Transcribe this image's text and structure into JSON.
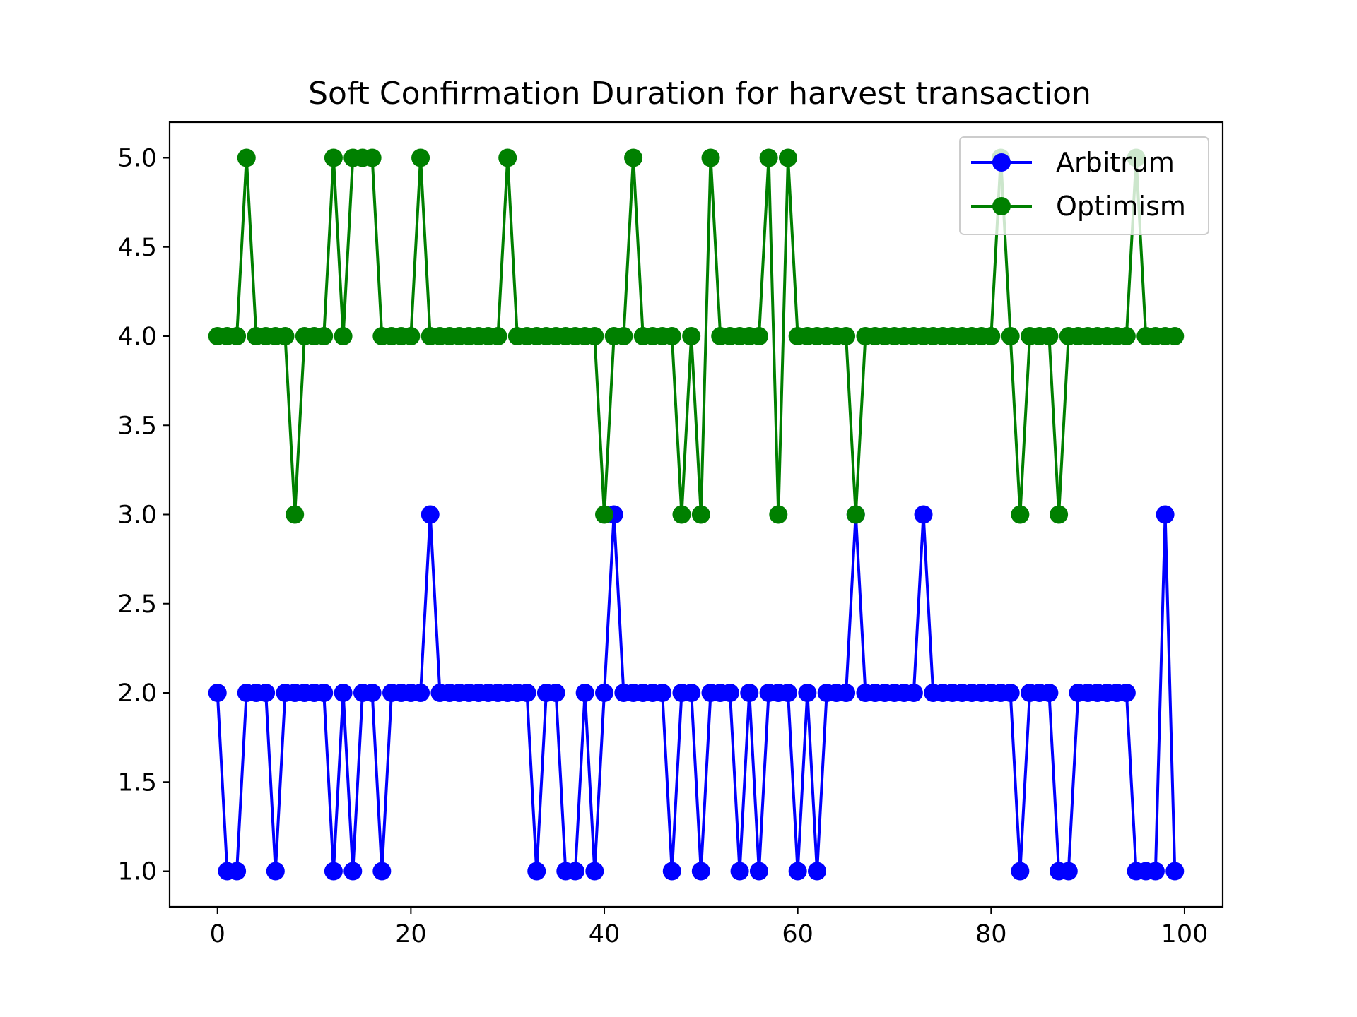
{
  "chart_data": {
    "type": "line",
    "title": "Soft Confirmation Duration for harvest transaction",
    "xlabel": "",
    "ylabel": "",
    "xlim": [
      -4.95,
      103.95
    ],
    "ylim": [
      0.8,
      5.2
    ],
    "xticks": [
      "0",
      "20",
      "40",
      "60",
      "80",
      "100"
    ],
    "yticks": [
      "1.0",
      "1.5",
      "2.0",
      "2.5",
      "3.0",
      "3.5",
      "4.0",
      "4.5",
      "5.0"
    ],
    "grid": false,
    "legend_position": "top-right",
    "x": [
      0,
      1,
      2,
      3,
      4,
      5,
      6,
      7,
      8,
      9,
      10,
      11,
      12,
      13,
      14,
      15,
      16,
      17,
      18,
      19,
      20,
      21,
      22,
      23,
      24,
      25,
      26,
      27,
      28,
      29,
      30,
      31,
      32,
      33,
      34,
      35,
      36,
      37,
      38,
      39,
      40,
      41,
      42,
      43,
      44,
      45,
      46,
      47,
      48,
      49,
      50,
      51,
      52,
      53,
      54,
      55,
      56,
      57,
      58,
      59,
      60,
      61,
      62,
      63,
      64,
      65,
      66,
      67,
      68,
      69,
      70,
      71,
      72,
      73,
      74,
      75,
      76,
      77,
      78,
      79,
      80,
      81,
      82,
      83,
      84,
      85,
      86,
      87,
      88,
      89,
      90,
      91,
      92,
      93,
      94,
      95,
      96,
      97,
      98,
      99
    ],
    "series": [
      {
        "name": "Arbitrum",
        "color": "#0000ff",
        "values": [
          2,
          1,
          1,
          2,
          2,
          2,
          1,
          2,
          2,
          2,
          2,
          2,
          1,
          2,
          1,
          2,
          2,
          1,
          2,
          2,
          2,
          2,
          3,
          2,
          2,
          2,
          2,
          2,
          2,
          2,
          2,
          2,
          2,
          1,
          2,
          2,
          1,
          1,
          2,
          1,
          2,
          3,
          2,
          2,
          2,
          2,
          2,
          1,
          2,
          2,
          1,
          2,
          2,
          2,
          1,
          2,
          1,
          2,
          2,
          2,
          1,
          2,
          1,
          2,
          2,
          2,
          3,
          2,
          2,
          2,
          2,
          2,
          2,
          3,
          2,
          2,
          2,
          2,
          2,
          2,
          2,
          2,
          2,
          1,
          2,
          2,
          2,
          1,
          1,
          2,
          2,
          2,
          2,
          2,
          2,
          1,
          1,
          1,
          3,
          1
        ]
      },
      {
        "name": "Optimism",
        "color": "#008000",
        "values": [
          4,
          4,
          4,
          5,
          4,
          4,
          4,
          4,
          3,
          4,
          4,
          4,
          5,
          4,
          5,
          5,
          5,
          4,
          4,
          4,
          4,
          5,
          4,
          4,
          4,
          4,
          4,
          4,
          4,
          4,
          5,
          4,
          4,
          4,
          4,
          4,
          4,
          4,
          4,
          4,
          3,
          4,
          4,
          5,
          4,
          4,
          4,
          4,
          3,
          4,
          3,
          5,
          4,
          4,
          4,
          4,
          4,
          5,
          3,
          5,
          4,
          4,
          4,
          4,
          4,
          4,
          3,
          4,
          4,
          4,
          4,
          4,
          4,
          4,
          4,
          4,
          4,
          4,
          4,
          4,
          4,
          5,
          4,
          3,
          4,
          4,
          4,
          3,
          4,
          4,
          4,
          4,
          4,
          4,
          4,
          5,
          4,
          4,
          4,
          4
        ]
      }
    ]
  }
}
